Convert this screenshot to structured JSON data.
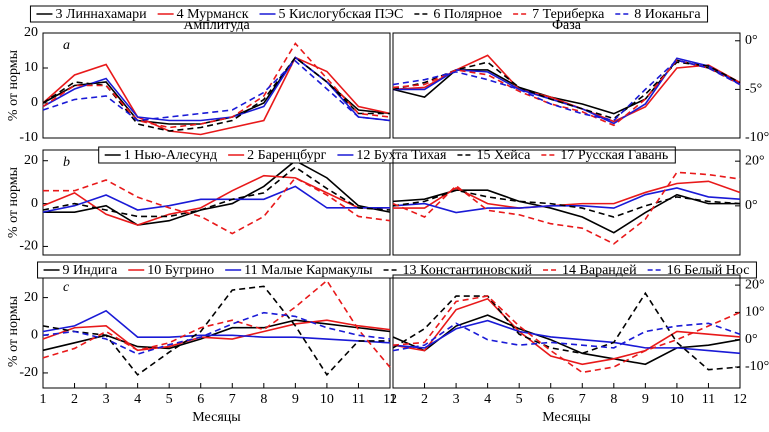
{
  "chart_data": [
    {
      "type": "line",
      "panel_label": "a",
      "title": "Амплитуда",
      "ylabel": "% от нормы",
      "x": [
        1,
        2,
        3,
        4,
        5,
        6,
        7,
        8,
        9,
        10,
        11,
        12
      ],
      "xlim": [
        1,
        12
      ],
      "ylim": [
        -10,
        20
      ],
      "yticks": [
        -10,
        0,
        10,
        20
      ],
      "series": [
        {
          "name": "3 Линнахамари",
          "color": "#000000",
          "dash": false,
          "values": [
            0,
            5,
            6,
            -5,
            -6,
            -6,
            -4,
            0,
            13,
            6,
            -2,
            -3
          ]
        },
        {
          "name": "4 Мурманск",
          "color": "#e8191a",
          "dash": false,
          "values": [
            0,
            8,
            11,
            -4,
            -8,
            -9,
            -7,
            -5,
            13,
            9,
            -1,
            -3
          ]
        },
        {
          "name": "5 Кислогубская ПЭС",
          "color": "#1a1ad6",
          "dash": false,
          "values": [
            -1,
            4,
            7,
            -4,
            -5,
            -5,
            -4,
            -1,
            13,
            6,
            -4,
            -5
          ]
        },
        {
          "name": "6 Полярное",
          "color": "#000000",
          "dash": true,
          "values": [
            0,
            6,
            5,
            -6,
            -8,
            -7,
            -5,
            1,
            13,
            6,
            -3,
            -3
          ]
        },
        {
          "name": "7 Териберка",
          "color": "#e8191a",
          "dash": true,
          "values": [
            -1,
            5,
            5,
            -5,
            -7,
            -6,
            -4,
            2,
            17,
            7,
            -3,
            -4
          ]
        },
        {
          "name": "8 Иоканьга",
          "color": "#1a1ad6",
          "dash": true,
          "values": [
            -2,
            1,
            2,
            -5,
            -4,
            -3,
            -2,
            3,
            12,
            4,
            -4,
            -5
          ]
        }
      ]
    },
    {
      "type": "line",
      "title": "Фаза",
      "yaxis_side": "right",
      "x": [
        1,
        2,
        3,
        4,
        5,
        6,
        7,
        8,
        9,
        10,
        11,
        12
      ],
      "xlim": [
        1,
        12
      ],
      "ylim": [
        -10,
        0.8
      ],
      "yticks": [
        {
          "value": -10,
          "label": "-10°"
        },
        {
          "value": -5,
          "label": "-5°"
        },
        {
          "value": 0,
          "label": "0°"
        }
      ],
      "series": [
        {
          "color": "#000000",
          "dash": false,
          "values": [
            -5,
            -5.8,
            -3,
            -3,
            -4.8,
            -5.8,
            -6.5,
            -7.5,
            -6,
            -2,
            -2.8,
            -4.3
          ]
        },
        {
          "color": "#e8191a",
          "dash": false,
          "values": [
            -5,
            -4.8,
            -3,
            -1.5,
            -5,
            -5.8,
            -7,
            -8.3,
            -6.8,
            -2.8,
            -2.5,
            -4.3
          ]
        },
        {
          "color": "#1a1ad6",
          "dash": false,
          "values": [
            -5,
            -5,
            -3,
            -3.2,
            -5,
            -6,
            -7,
            -8.5,
            -6.5,
            -1.8,
            -2.6,
            -4.5
          ]
        },
        {
          "color": "#000000",
          "dash": true,
          "values": [
            -5,
            -4.3,
            -3,
            -2.2,
            -4.8,
            -6,
            -7,
            -8,
            -5.5,
            -2.2,
            -2.6,
            -4.3
          ]
        },
        {
          "color": "#e8191a",
          "dash": true,
          "values": [
            -4.8,
            -4.5,
            -3,
            -3.5,
            -5.2,
            -6.5,
            -7.3,
            -8.7,
            -6,
            -2,
            -2.8,
            -4.5
          ]
        },
        {
          "color": "#1a1ad6",
          "dash": true,
          "values": [
            -4.5,
            -4,
            -3.2,
            -4,
            -5,
            -6.5,
            -7.5,
            -8.2,
            -5,
            -2,
            -2.8,
            -4.5
          ]
        }
      ]
    },
    {
      "type": "line",
      "panel_label": "b",
      "ylabel": "% от нормы",
      "x": [
        1,
        2,
        3,
        4,
        5,
        6,
        7,
        8,
        9,
        10,
        11,
        12
      ],
      "xlim": [
        1,
        12
      ],
      "ylim": [
        -24,
        25
      ],
      "yticks": [
        -20,
        0,
        20
      ],
      "series": [
        {
          "name": "1 Нью-Алесунд",
          "color": "#000000",
          "dash": false,
          "values": [
            -4,
            -4,
            -1,
            -10,
            -8,
            -3,
            0,
            8,
            20,
            12,
            -1,
            -4
          ]
        },
        {
          "name": "2 Баренцбург",
          "color": "#e8191a",
          "dash": false,
          "values": [
            -1,
            5,
            -5,
            -10,
            -5,
            -2,
            6,
            13,
            12,
            5,
            -2,
            -2
          ]
        },
        {
          "name": "12 Бухта Тихая",
          "color": "#1a1ad6",
          "dash": false,
          "values": [
            -4,
            -1,
            4,
            -3,
            -1,
            2,
            2,
            2,
            8,
            -2,
            -2,
            -2
          ]
        },
        {
          "name": "15 Хейса",
          "color": "#000000",
          "dash": true,
          "values": [
            -3,
            0,
            -3,
            -6,
            -6,
            -3,
            2,
            5,
            17,
            7,
            -2,
            -3
          ]
        },
        {
          "name": "17 Русская Гавань",
          "color": "#e8191a",
          "dash": true,
          "values": [
            6,
            6,
            11,
            3,
            -2,
            -6,
            -14,
            -6,
            12,
            4,
            -6,
            -8
          ]
        }
      ]
    },
    {
      "type": "line",
      "yaxis_side": "right",
      "x": [
        1,
        2,
        3,
        4,
        5,
        6,
        7,
        8,
        9,
        10,
        11,
        12
      ],
      "xlim": [
        1,
        12
      ],
      "ylim": [
        -22,
        25
      ],
      "yticks": [
        {
          "value": 0,
          "label": "0°"
        },
        {
          "value": 20,
          "label": "20°"
        }
      ],
      "series": [
        {
          "color": "#000000",
          "dash": false,
          "values": [
            2,
            3,
            7,
            7,
            2,
            -1,
            -5,
            -12,
            -3,
            5,
            1,
            1
          ]
        },
        {
          "color": "#e8191a",
          "dash": false,
          "values": [
            -1,
            -1,
            8,
            1,
            -1,
            0,
            1,
            1,
            6,
            10,
            11,
            6
          ]
        },
        {
          "color": "#1a1ad6",
          "dash": false,
          "values": [
            0,
            1,
            -3,
            -1,
            -1,
            0,
            0,
            -1,
            5,
            8,
            4,
            3
          ]
        },
        {
          "color": "#000000",
          "dash": true,
          "values": [
            0,
            2,
            7,
            4,
            2,
            1,
            -1,
            -5,
            0,
            4,
            2,
            1
          ]
        },
        {
          "color": "#e8191a",
          "dash": true,
          "values": [
            1,
            -5,
            9,
            -2,
            -4,
            -8,
            -10,
            -17,
            -6,
            15,
            14,
            12
          ]
        }
      ]
    },
    {
      "type": "line",
      "panel_label": "c",
      "ylabel": "% от нормы",
      "xlabel": "Месяцы",
      "x": [
        1,
        2,
        3,
        4,
        5,
        6,
        7,
        8,
        9,
        10,
        11,
        12
      ],
      "xlim": [
        1,
        12
      ],
      "xticks": [
        1,
        2,
        3,
        4,
        5,
        6,
        7,
        8,
        9,
        10,
        11,
        12
      ],
      "ylim": [
        -28,
        32
      ],
      "yticks": [
        -20,
        0,
        20
      ],
      "series": [
        {
          "name": "9 Индига",
          "color": "#000000",
          "dash": false,
          "values": [
            -8,
            -4,
            0,
            -6,
            -7,
            -2,
            4,
            4,
            8,
            6,
            4,
            2
          ]
        },
        {
          "name": "10 Бугрино",
          "color": "#e8191a",
          "dash": false,
          "values": [
            -2,
            4,
            5,
            -8,
            -6,
            -1,
            -2,
            2,
            6,
            8,
            5,
            3
          ]
        },
        {
          "name": "11 Малые Кармакулы",
          "color": "#1a1ad6",
          "dash": false,
          "values": [
            2,
            5,
            13,
            -1,
            -1,
            0,
            0,
            -1,
            -1,
            -2,
            -3,
            -4
          ]
        },
        {
          "name": "13 Константиновский",
          "color": "#000000",
          "dash": true,
          "values": [
            5,
            2,
            0,
            -21,
            -9,
            2,
            24,
            26,
            5,
            -21,
            -3,
            -3
          ]
        },
        {
          "name": "14 Варандей",
          "color": "#e8191a",
          "dash": true,
          "values": [
            -12,
            -7,
            2,
            -8,
            -4,
            4,
            8,
            3,
            15,
            29,
            3,
            -17
          ]
        },
        {
          "name": "16 Белый Нос",
          "color": "#1a1ad6",
          "dash": true,
          "values": [
            0,
            2,
            -2,
            -10,
            -5,
            -1,
            6,
            12,
            10,
            4,
            0,
            -2
          ]
        }
      ]
    },
    {
      "type": "line",
      "yaxis_side": "right",
      "xlabel": "Месяцы",
      "x": [
        1,
        2,
        3,
        4,
        5,
        6,
        7,
        8,
        9,
        10,
        11,
        12
      ],
      "xlim": [
        1,
        12
      ],
      "xticks": [
        1,
        2,
        3,
        4,
        5,
        6,
        7,
        8,
        9,
        10,
        11,
        12
      ],
      "ylim": [
        -17.7,
        23.7
      ],
      "yticks": [
        {
          "value": -10,
          "label": "-10°"
        },
        {
          "value": 0,
          "label": "0°"
        },
        {
          "value": 10,
          "label": "10°"
        },
        {
          "value": 20,
          "label": "20°"
        }
      ],
      "series": [
        {
          "color": "#000000",
          "dash": false,
          "values": [
            1,
            -4,
            5,
            9,
            4,
            0,
            -5,
            -7,
            -9,
            -3,
            -2,
            0
          ]
        },
        {
          "color": "#e8191a",
          "dash": false,
          "values": [
            -2,
            -4,
            11,
            15,
            3,
            -6,
            -9,
            -7,
            -4,
            3,
            2,
            1
          ]
        },
        {
          "color": "#1a1ad6",
          "dash": false,
          "values": [
            -2,
            -3,
            4,
            7,
            3,
            1,
            0,
            -1,
            -3,
            -3,
            -4,
            -5
          ]
        },
        {
          "color": "#000000",
          "dash": true,
          "values": [
            -3,
            4,
            16,
            16,
            2,
            -3,
            -5,
            -1,
            17,
            -1,
            -11,
            -10
          ]
        },
        {
          "color": "#e8191a",
          "dash": true,
          "values": [
            -2,
            -1,
            14,
            16,
            5,
            -4,
            -12,
            -10,
            -4,
            0,
            5,
            10
          ]
        },
        {
          "color": "#1a1ad6",
          "dash": true,
          "values": [
            -4,
            -2,
            6,
            0,
            -2,
            -1,
            -2,
            -3,
            3,
            5,
            6,
            2
          ]
        }
      ]
    }
  ]
}
